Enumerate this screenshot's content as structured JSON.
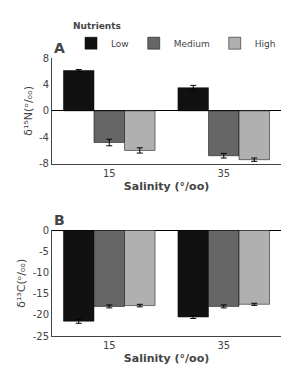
{
  "chart_data": [
    {
      "type": "bar",
      "title": "A",
      "x_label": "Salinity (°/oo)",
      "y_label": "δ¹⁵N(ᵒ/ₒₒ)",
      "categories": [
        "15",
        "35"
      ],
      "series": [
        {
          "name": "Low",
          "color": "#111111",
          "values": [
            6.1,
            3.5
          ],
          "errors": [
            0.15,
            0.35
          ]
        },
        {
          "name": "Medium",
          "color": "#666666",
          "values": [
            -4.8,
            -6.8
          ],
          "errors": [
            0.5,
            0.35
          ]
        },
        {
          "name": "High",
          "color": "#b0b0b0",
          "values": [
            -6.0,
            -7.4
          ],
          "errors": [
            0.4,
            0.25
          ]
        }
      ],
      "ylim": [
        -8,
        8
      ],
      "yticks": [
        -8,
        -4,
        0,
        4,
        8
      ],
      "grid": false,
      "legend": "top right",
      "legend_title": "Nutrients"
    },
    {
      "type": "bar",
      "title": "B",
      "x_label": "Salinity (°/oo)",
      "y_label": "δ¹³C(ᵒ/ₒₒ)",
      "categories": [
        "15",
        "35"
      ],
      "series": [
        {
          "name": "Low",
          "color": "#111111",
          "values": [
            -21.5,
            -20.5
          ],
          "errors": [
            0.5,
            0.35
          ]
        },
        {
          "name": "Medium",
          "color": "#666666",
          "values": [
            -18.0,
            -18.0
          ],
          "errors": [
            0.35,
            0.35
          ]
        },
        {
          "name": "High",
          "color": "#b0b0b0",
          "values": [
            -17.8,
            -17.5
          ],
          "errors": [
            0.3,
            0.25
          ]
        }
      ],
      "ylim": [
        -25,
        0
      ],
      "yticks": [
        -25,
        -20,
        -15,
        -10,
        -5,
        0
      ],
      "grid": false
    }
  ]
}
